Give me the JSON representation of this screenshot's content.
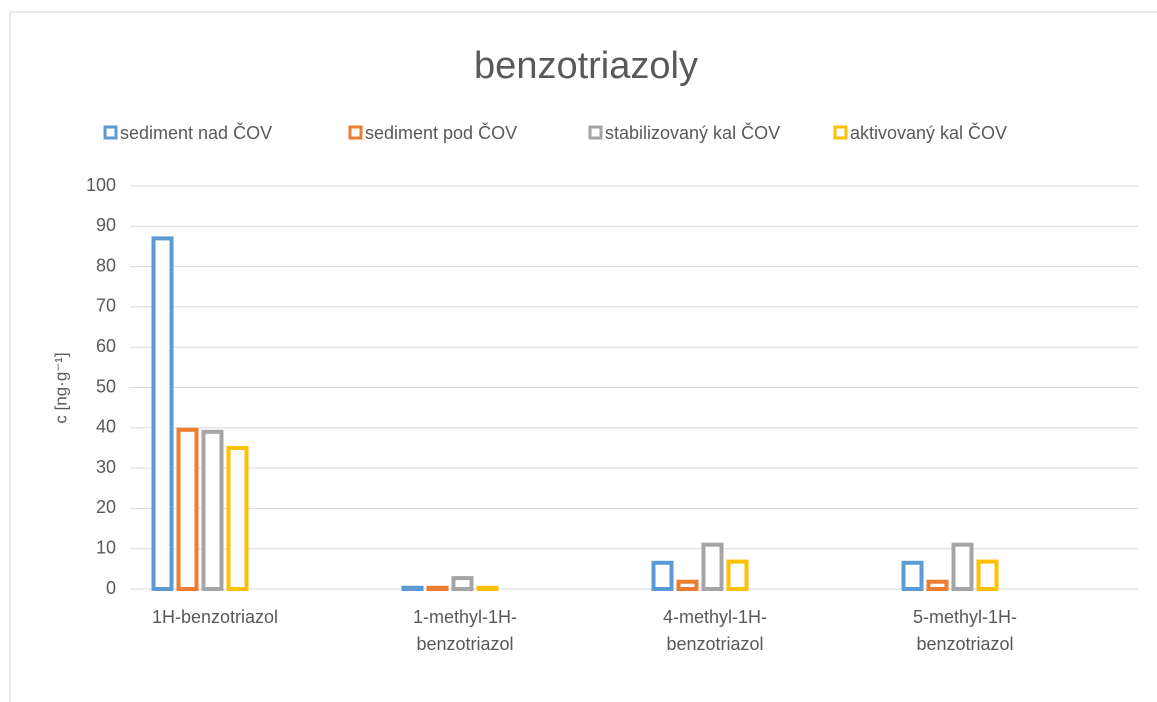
{
  "chart_data": {
    "type": "bar",
    "title": "benzotriazoly",
    "ylabel": "c [ng·g⁻¹]",
    "categories": [
      "1H-benzotriazol",
      "1-methyl-1H-benzotriazol",
      "4-methyl-1H-benzotriazol",
      "5-methyl-1H-benzotriazol"
    ],
    "series": [
      {
        "name": "sediment nad ČOV",
        "color": "#5b9bd5",
        "values": [
          87.5,
          0.8,
          7,
          7
        ]
      },
      {
        "name": "sediment pod ČOV",
        "color": "#ed7d31",
        "values": [
          40,
          0.8,
          2.3,
          2.3
        ]
      },
      {
        "name": "stabilizovaný kal ČOV",
        "color": "#a5a5a5",
        "values": [
          39.5,
          3.2,
          11.5,
          11.5
        ]
      },
      {
        "name": "aktivovaný kal ČOV",
        "color": "#ffc000",
        "values": [
          35.5,
          0.8,
          7.3,
          7.3
        ]
      }
    ],
    "ylim": [
      0,
      100
    ],
    "yticks": [
      0,
      10,
      20,
      30,
      40,
      50,
      60,
      70,
      80,
      90,
      100
    ],
    "grid": true,
    "legend": "top"
  }
}
